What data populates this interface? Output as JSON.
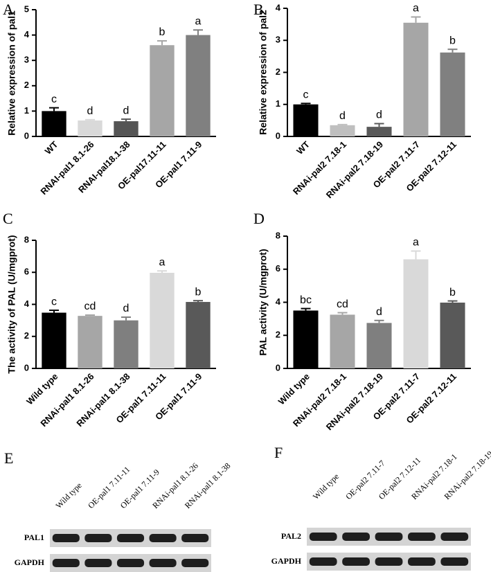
{
  "chart_data": [
    {
      "type": "bar",
      "panel": "A",
      "ylabel": "Relative expression of pal1",
      "categories": [
        "WT",
        "RNAI-pal1 8.1-26",
        "RNAI-pal18.1-38",
        "OE-pal17.11-11",
        "OE-pal1 7.11-9"
      ],
      "values": [
        1.0,
        0.63,
        0.6,
        3.6,
        4.0
      ],
      "errors": [
        0.13,
        0.03,
        0.08,
        0.17,
        0.2
      ],
      "annotations": [
        "c",
        "d",
        "d",
        "b",
        "a"
      ],
      "colors": [
        "#000000",
        "#d9d9d9",
        "#555555",
        "#a6a6a6",
        "#808080"
      ],
      "ylim": [
        0,
        5
      ],
      "yticks": [
        0,
        1,
        2,
        3,
        4,
        5
      ]
    },
    {
      "type": "bar",
      "panel": "B",
      "ylabel": "Relative expression of pal2",
      "categories": [
        "WT",
        "RNAi-pal2 7.18-1",
        "RNAi-pal2 7.18-19",
        "OE-pal2 7.11-7",
        "OE-pal2 7.12-11"
      ],
      "values": [
        1.0,
        0.35,
        0.3,
        3.55,
        2.62
      ],
      "errors": [
        0.03,
        0.02,
        0.1,
        0.18,
        0.1
      ],
      "annotations": [
        "c",
        "d",
        "d",
        "a",
        "b"
      ],
      "colors": [
        "#000000",
        "#bfbfbf",
        "#595959",
        "#a6a6a6",
        "#808080"
      ],
      "ylim": [
        0,
        4
      ],
      "yticks": [
        0,
        1,
        2,
        3,
        4
      ]
    },
    {
      "type": "bar",
      "panel": "C",
      "ylabel": "The activity of PAL (U/mgprot)",
      "categories": [
        "Wild type",
        "RNAi-pal1 8.1-26",
        "RNAi-pal1 8.1-38",
        "OE-pal1 7.11-11",
        "OE-pal1 7.11-9"
      ],
      "values": [
        3.48,
        3.28,
        3.0,
        5.97,
        4.15
      ],
      "errors": [
        0.15,
        0.05,
        0.2,
        0.12,
        0.08
      ],
      "annotations": [
        "c",
        "cd",
        "d",
        "a",
        "b"
      ],
      "colors": [
        "#000000",
        "#a6a6a6",
        "#7f7f7f",
        "#d9d9d9",
        "#595959"
      ],
      "ylim": [
        0,
        8
      ],
      "yticks": [
        0,
        2,
        4,
        6,
        8
      ]
    },
    {
      "type": "bar",
      "panel": "D",
      "ylabel": "PAL activity (U/mgprot)",
      "categories": [
        "Wild type",
        "RNAi-pal2 7.18-1",
        "RNAi-pal2 7.18-19",
        "OE-pal2 7.11-7",
        "OE-pal2 7.12-11"
      ],
      "values": [
        3.5,
        3.25,
        2.75,
        6.6,
        3.98
      ],
      "errors": [
        0.12,
        0.12,
        0.15,
        0.5,
        0.1
      ],
      "annotations": [
        "bc",
        "cd",
        "d",
        "a",
        "b"
      ],
      "colors": [
        "#000000",
        "#a6a6a6",
        "#7f7f7f",
        "#d9d9d9",
        "#595959"
      ],
      "ylim": [
        0,
        8
      ],
      "yticks": [
        0,
        2,
        4,
        6,
        8
      ]
    }
  ],
  "blots": [
    {
      "panel": "E",
      "lanes": [
        "Wild type",
        "OE-pal1 7.11-11",
        "OE-pal1 7.11-9",
        "RNAi-pal1 8.1-26",
        "RNAi-pal1 8.1-38"
      ],
      "rows": [
        "PAL1",
        "GAPDH"
      ]
    },
    {
      "panel": "F",
      "lanes": [
        "Wild type",
        "OE-pal2 7.11-7",
        "OE-pal2 7.12-11",
        "RNAi-pal2 7.18-1",
        "RNAi-pal2 7.18-19"
      ],
      "rows": [
        "PAL2",
        "GAPDH"
      ]
    }
  ]
}
